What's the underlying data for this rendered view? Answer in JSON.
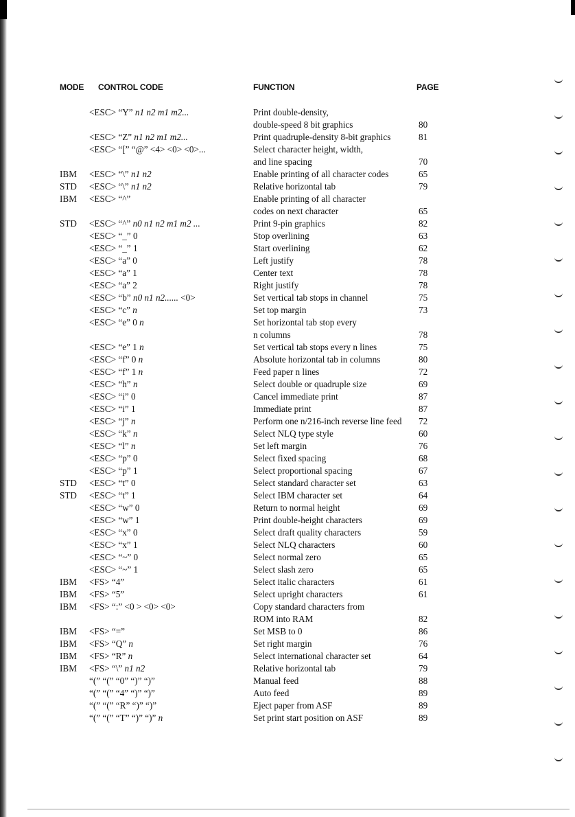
{
  "headers": {
    "mode": "MODE",
    "code": "CONTROL CODE",
    "function": "FUNCTION",
    "page": "PAGE"
  },
  "entries": [
    {
      "mode": "",
      "code": [
        [
          "<ESC> “Y” ",
          0
        ],
        [
          "n1 n2 m1 m2...",
          1
        ]
      ],
      "function": [
        "Print double-density,",
        "double-speed 8 bit graphics"
      ],
      "page": "80"
    },
    {
      "mode": "",
      "code": [
        [
          "<ESC> “Z” ",
          0
        ],
        [
          "n1 n2 m1 m2...",
          1
        ]
      ],
      "function": [
        "Print quadruple-density 8-bit graphics"
      ],
      "page": "81"
    },
    {
      "mode": "",
      "code": [
        [
          "<ESC> “[” “@” <4> <0> <0>...",
          0
        ]
      ],
      "function": [
        "Select character height, width,",
        "and line spacing"
      ],
      "page": "70"
    },
    {
      "mode": "IBM",
      "code": [
        [
          "<ESC> “\\” ",
          0
        ],
        [
          "n1 n2",
          1
        ]
      ],
      "function": [
        "Enable printing of all character codes"
      ],
      "page": "65"
    },
    {
      "mode": "STD",
      "code": [
        [
          "<ESC> “\\” ",
          0
        ],
        [
          "n1 n2",
          1
        ]
      ],
      "function": [
        "Relative horizontal tab"
      ],
      "page": "79"
    },
    {
      "mode": "IBM",
      "code": [
        [
          "<ESC> “^”",
          0
        ]
      ],
      "function": [
        "Enable printing of all character",
        "codes on next character"
      ],
      "page": "65"
    },
    {
      "mode": "STD",
      "code": [
        [
          "<ESC> “^” ",
          0
        ],
        [
          "n0 n1 n2 m1 m2 ...",
          1
        ]
      ],
      "function": [
        "Print 9-pin graphics"
      ],
      "page": "82"
    },
    {
      "mode": "",
      "code": [
        [
          "<ESC> “_” 0",
          0
        ]
      ],
      "function": [
        "Stop overlining"
      ],
      "page": "63"
    },
    {
      "mode": "",
      "code": [
        [
          "<ESC> “_” 1",
          0
        ]
      ],
      "function": [
        "Start overlining"
      ],
      "page": "62"
    },
    {
      "mode": "",
      "code": [
        [
          "<ESC> “a” 0",
          0
        ]
      ],
      "function": [
        "Left justify"
      ],
      "page": "78"
    },
    {
      "mode": "",
      "code": [
        [
          "<ESC> “a” 1",
          0
        ]
      ],
      "function": [
        "Center text"
      ],
      "page": "78"
    },
    {
      "mode": "",
      "code": [
        [
          "<ESC> “a” 2",
          0
        ]
      ],
      "function": [
        "Right justify"
      ],
      "page": "78"
    },
    {
      "mode": "",
      "code": [
        [
          "<ESC> “b” ",
          0
        ],
        [
          "n0 n1 n2......",
          1
        ],
        [
          "  <0>",
          0
        ]
      ],
      "function": [
        "Set vertical tab stops in channel"
      ],
      "page": "75"
    },
    {
      "mode": "",
      "code": [
        [
          "<ESC> “c” ",
          0
        ],
        [
          "n",
          1
        ]
      ],
      "function": [
        "Set top margin"
      ],
      "page": "73"
    },
    {
      "mode": "",
      "code": [
        [
          "<ESC> “e” 0 ",
          0
        ],
        [
          "n",
          1
        ]
      ],
      "function": [
        "Set horizontal tab stop every",
        "n columns"
      ],
      "page": "78"
    },
    {
      "mode": "",
      "code": [
        [
          "<ESC> “e” 1 ",
          0
        ],
        [
          "n",
          1
        ]
      ],
      "function": [
        "Set vertical tab stops every n lines"
      ],
      "page": "75"
    },
    {
      "mode": "",
      "code": [
        [
          "<ESC> “f” 0 ",
          0
        ],
        [
          "n",
          1
        ]
      ],
      "function": [
        "Absolute horizontal tab in columns"
      ],
      "page": "80"
    },
    {
      "mode": "",
      "code": [
        [
          "<ESC> “f” 1 ",
          0
        ],
        [
          "n",
          1
        ]
      ],
      "function": [
        "Feed paper n lines"
      ],
      "page": "72"
    },
    {
      "mode": "",
      "code": [
        [
          "<ESC> “h” ",
          0
        ],
        [
          "n",
          1
        ]
      ],
      "function": [
        "Select double or quadruple size"
      ],
      "page": "69"
    },
    {
      "mode": "",
      "code": [
        [
          "<ESC> “i” 0",
          0
        ]
      ],
      "function": [
        "Cancel immediate print"
      ],
      "page": "87"
    },
    {
      "mode": "",
      "code": [
        [
          "<ESC> “i” 1",
          0
        ]
      ],
      "function": [
        "Immediate print"
      ],
      "page": "87"
    },
    {
      "mode": "",
      "code": [
        [
          "<ESC> “j” ",
          0
        ],
        [
          "n",
          1
        ]
      ],
      "function": [
        "Perform one n/216-inch reverse line feed"
      ],
      "page": "72"
    },
    {
      "mode": "",
      "code": [
        [
          "<ESC> “k” ",
          0
        ],
        [
          "n",
          1
        ]
      ],
      "function": [
        "Select NLQ type style"
      ],
      "page": "60"
    },
    {
      "mode": "",
      "code": [
        [
          "<ESC> “l” ",
          0
        ],
        [
          "n",
          1
        ]
      ],
      "function": [
        "Set left margin"
      ],
      "page": "76"
    },
    {
      "mode": "",
      "code": [
        [
          "<ESC> “p” 0",
          0
        ]
      ],
      "function": [
        "Select fixed spacing"
      ],
      "page": "68"
    },
    {
      "mode": "",
      "code": [
        [
          "<ESC> “p” 1",
          0
        ]
      ],
      "function": [
        "Select proportional spacing"
      ],
      "page": "67"
    },
    {
      "mode": "STD",
      "code": [
        [
          "<ESC> “t” 0",
          0
        ]
      ],
      "function": [
        "Select standard character set"
      ],
      "page": "63"
    },
    {
      "mode": "STD",
      "code": [
        [
          "<ESC> “t” 1",
          0
        ]
      ],
      "function": [
        "Select IBM character set"
      ],
      "page": "64"
    },
    {
      "mode": "",
      "code": [
        [
          "<ESC> “w” 0",
          0
        ]
      ],
      "function": [
        "Return to normal height"
      ],
      "page": "69"
    },
    {
      "mode": "",
      "code": [
        [
          "<ESC> “w” 1",
          0
        ]
      ],
      "function": [
        "Print double-height characters"
      ],
      "page": "69"
    },
    {
      "mode": "",
      "code": [
        [
          "<ESC> “x” 0",
          0
        ]
      ],
      "function": [
        "Select draft quality characters"
      ],
      "page": "59"
    },
    {
      "mode": "",
      "code": [
        [
          "<ESC> “x” 1",
          0
        ]
      ],
      "function": [
        "Select NLQ characters"
      ],
      "page": "60"
    },
    {
      "mode": "",
      "code": [
        [
          "<ESC> “~” 0",
          0
        ]
      ],
      "function": [
        "Select normal zero"
      ],
      "page": "65"
    },
    {
      "mode": "",
      "code": [
        [
          "<ESC> “~” 1",
          0
        ]
      ],
      "function": [
        "Select slash zero"
      ],
      "page": "65"
    },
    {
      "mode": "IBM",
      "code": [
        [
          "<FS> “4”",
          0
        ]
      ],
      "function": [
        "Select italic characters"
      ],
      "page": "61"
    },
    {
      "mode": "IBM",
      "code": [
        [
          "<FS> “5”",
          0
        ]
      ],
      "function": [
        "Select upright characters"
      ],
      "page": "61"
    },
    {
      "mode": "IBM",
      "code": [
        [
          "<FS> “:” <0 > <0> <0>",
          0
        ]
      ],
      "function": [
        "Copy standard characters from",
        "ROM into RAM"
      ],
      "page": "82"
    },
    {
      "mode": "IBM",
      "code": [
        [
          "<FS> “=”",
          0
        ]
      ],
      "function": [
        "Set MSB to 0"
      ],
      "page": "86"
    },
    {
      "mode": "IBM",
      "code": [
        [
          "<FS> “Q” ",
          0
        ],
        [
          "n",
          1
        ]
      ],
      "function": [
        "Set right margin"
      ],
      "page": "76"
    },
    {
      "mode": "IBM",
      "code": [
        [
          "<FS> “R” ",
          0
        ],
        [
          "n",
          1
        ]
      ],
      "function": [
        "Select international character set"
      ],
      "page": "64"
    },
    {
      "mode": "IBM",
      "code": [
        [
          "<FS> “\\” ",
          0
        ],
        [
          "n1 n2",
          1
        ]
      ],
      "function": [
        "Relative horizontal tab"
      ],
      "page": "79"
    },
    {
      "mode": "",
      "code": [
        [
          "“(” “(” “0” “)” “)”",
          0
        ]
      ],
      "function": [
        "Manual feed"
      ],
      "page": "88"
    },
    {
      "mode": "",
      "code": [
        [
          "“(” “(” “4” “)” “)”",
          0
        ]
      ],
      "function": [
        "Auto feed"
      ],
      "page": "89"
    },
    {
      "mode": "",
      "code": [
        [
          "“(” “(” “R” “)” “)”",
          0
        ]
      ],
      "function": [
        "Eject paper from ASF"
      ],
      "page": "89"
    },
    {
      "mode": "",
      "code": [
        [
          "“(” “(” “T” “)” “)” ",
          0
        ],
        [
          "n",
          1
        ]
      ],
      "function": [
        "Set print start position on ASF"
      ],
      "page": "89"
    }
  ]
}
